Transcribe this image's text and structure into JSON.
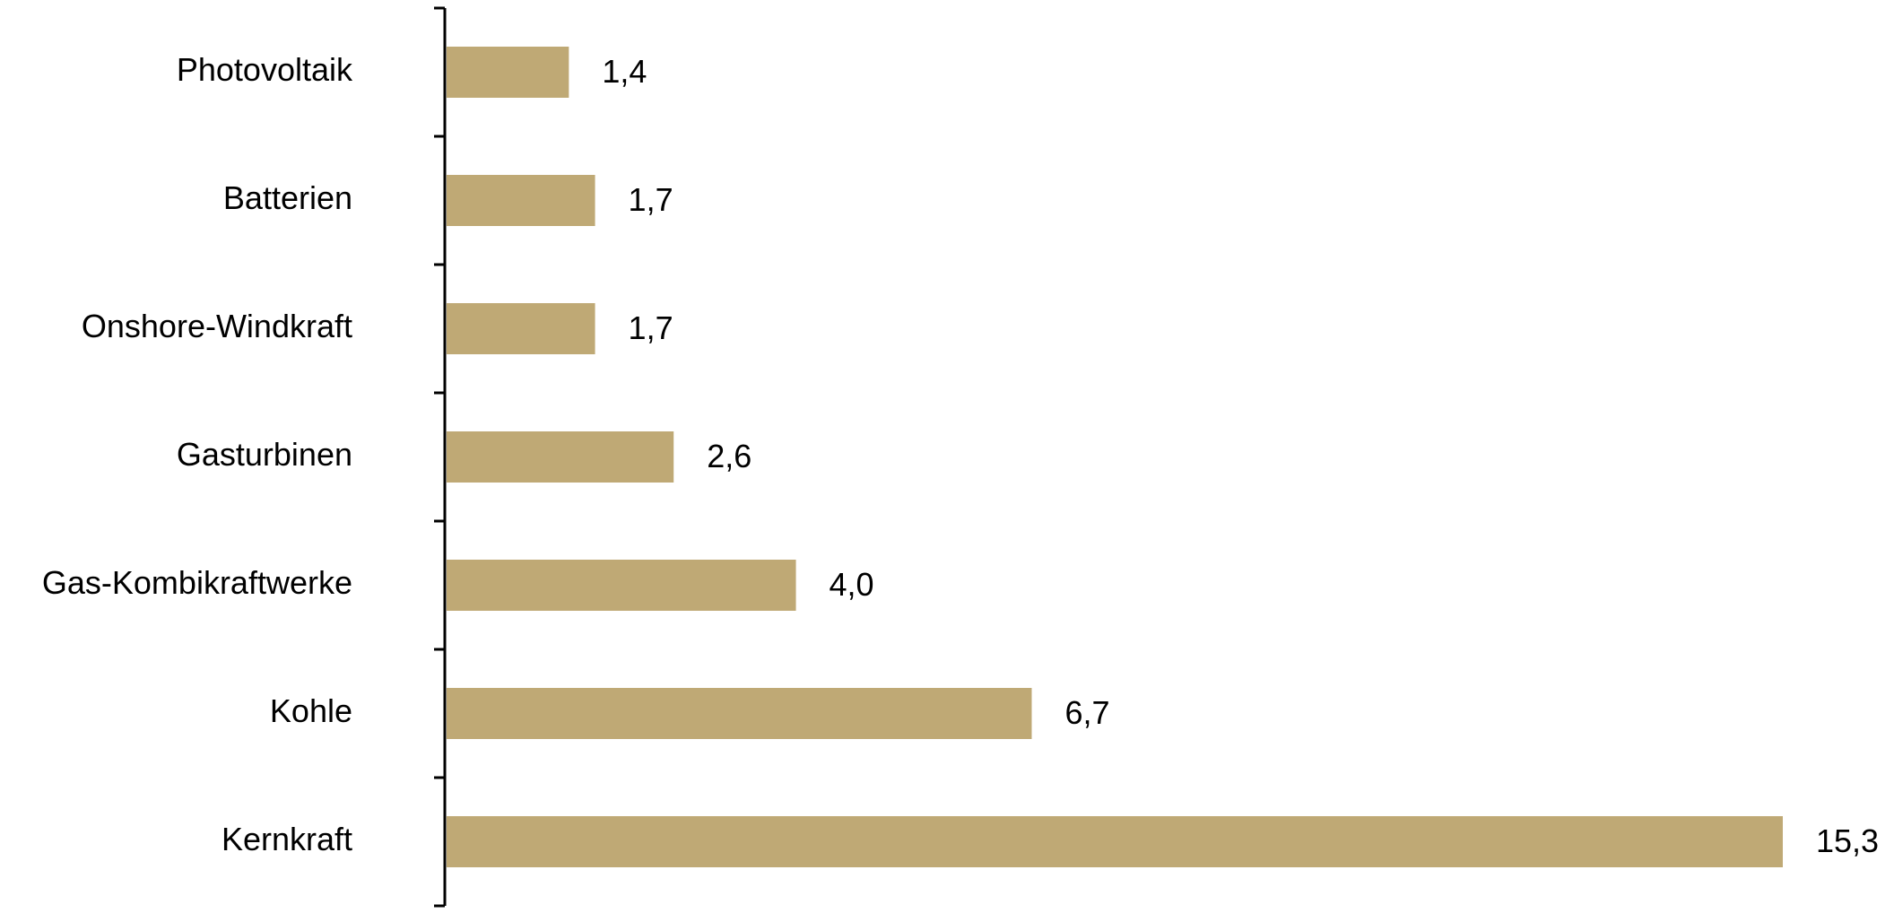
{
  "chart_data": {
    "type": "hbar",
    "categories": [
      "Photovoltaik",
      "Batterien",
      "Onshore-Windkraft",
      "Gasturbinen",
      "Gas-Kombikraftwerke",
      "Kohle",
      "Kernkraft"
    ],
    "values": [
      1.4,
      1.7,
      1.7,
      2.6,
      4.0,
      6.7,
      15.3
    ],
    "value_labels": [
      "1,4",
      "1,7",
      "1,7",
      "2,6",
      "4,0",
      "6,7",
      "15,3"
    ],
    "color": "#bfa975"
  }
}
